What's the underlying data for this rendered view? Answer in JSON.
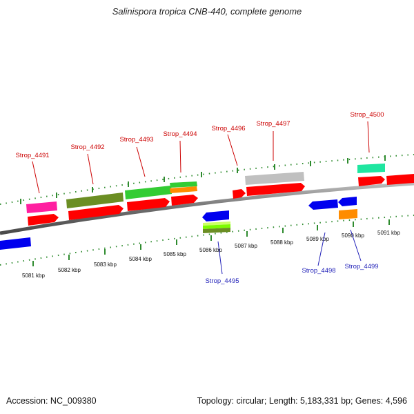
{
  "title": "Salinispora tropica CNB-440, complete genome",
  "footer": {
    "accession": "Accession: NC_009380",
    "summary": "Topology: circular; Length: 5,183,331 bp; Genes: 4,596"
  },
  "colors": {
    "forward_label": "#cc0000",
    "reverse_label": "#1f1fb8",
    "tick": "#2e8b2e",
    "backbone": "#8a8a8a"
  },
  "scale_labels": [
    "5081 kbp",
    "5082 kbp",
    "5083 kbp",
    "5084 kbp",
    "5085 kbp",
    "5086 kbp",
    "5087 kbp",
    "5088 kbp",
    "5089 kbp",
    "5090 kbp",
    "5091 kbp"
  ],
  "gene_labels": {
    "forward": [
      "Strop_4491",
      "Strop_4492",
      "Strop_4493",
      "Strop_4494",
      "Strop_4496",
      "Strop_4497",
      "Strop_4500"
    ],
    "reverse": [
      "Strop_4495",
      "Strop_4498",
      "Strop_4499"
    ]
  },
  "feature_colors": [
    "#ff1fa0",
    "#6b8e23",
    "#33cc33",
    "#ff8c00",
    "#c0c0c0",
    "#1fe6a0",
    "#ff0000",
    "#0000ee",
    "#ccff66"
  ]
}
